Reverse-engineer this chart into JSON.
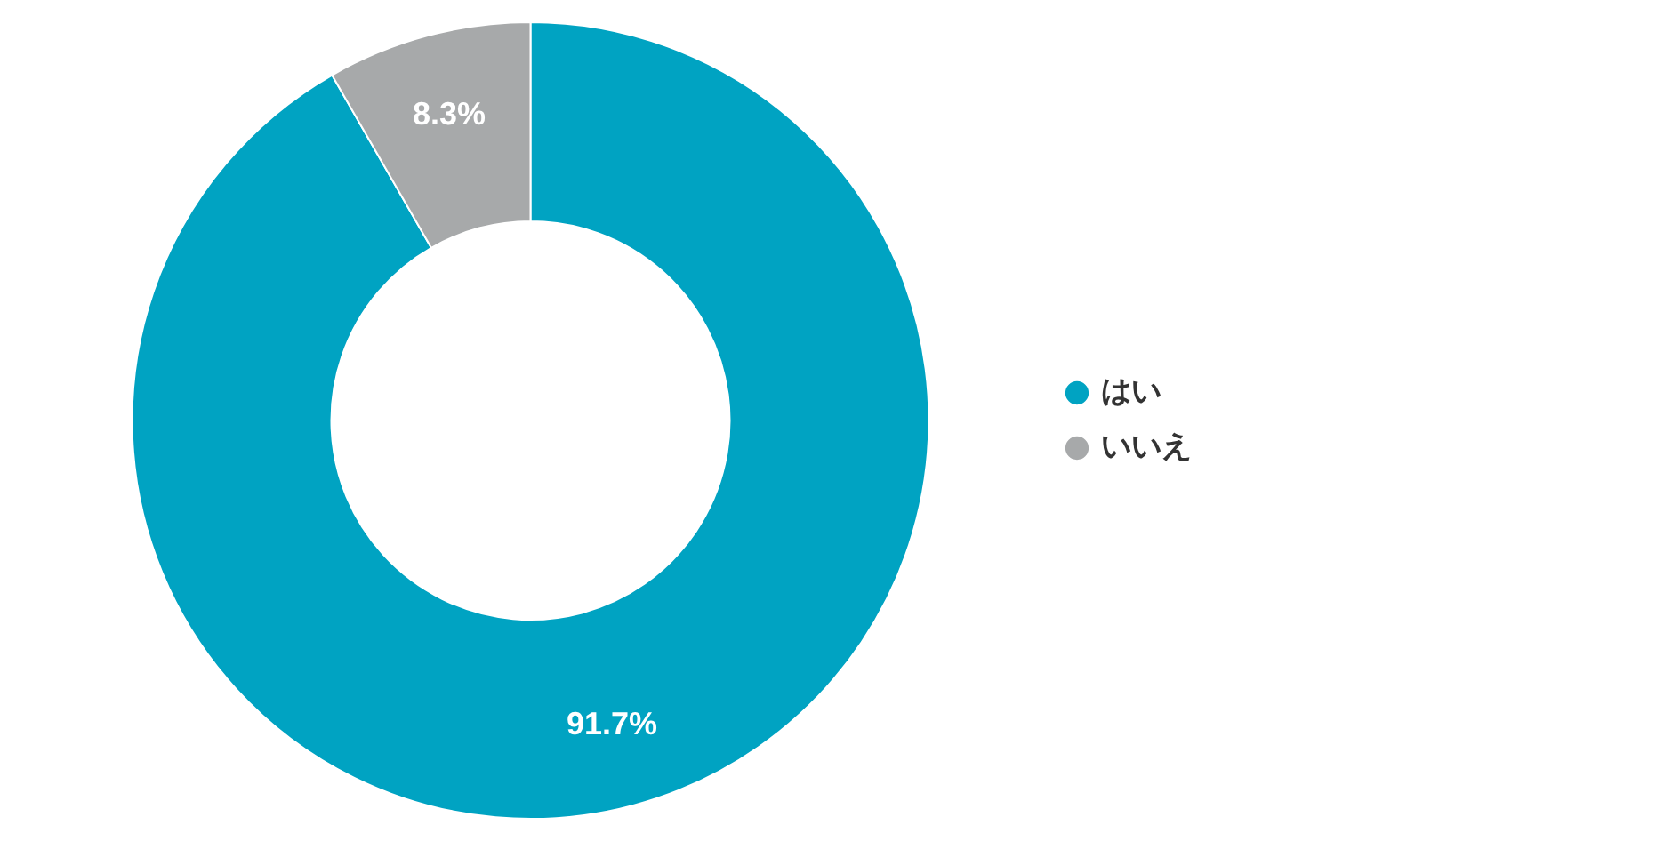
{
  "chart_data": {
    "type": "donut",
    "categories": [
      "はい",
      "いいえ"
    ],
    "values": [
      91.7,
      8.3
    ],
    "colors": [
      "#00a3c2",
      "#a7a9aa"
    ],
    "value_labels": [
      "91.7%",
      "8.3%"
    ],
    "legend": "right"
  }
}
